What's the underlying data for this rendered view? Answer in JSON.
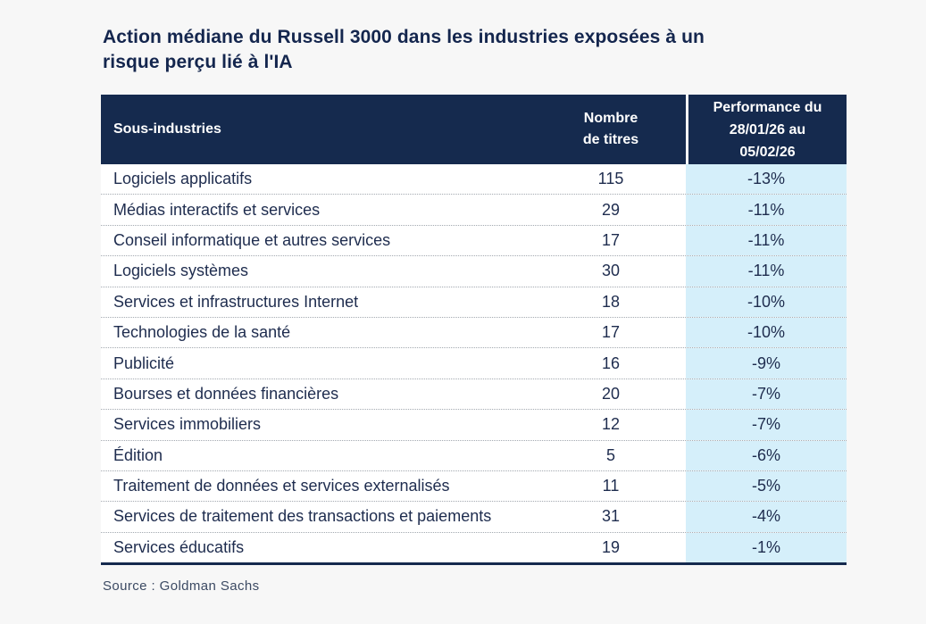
{
  "title": "Action médiane du Russell 3000 dans les industries exposées à un\nrisque perçu lié à l'IA",
  "table": {
    "headers": {
      "subindustries": "Sous-industries",
      "count": "Nombre\nde titres",
      "performance": "Performance du\n28/01/26 au\n05/02/26"
    },
    "rows": [
      {
        "name": "Logiciels applicatifs",
        "count": "115",
        "perf": "-13%"
      },
      {
        "name": "Médias interactifs et services",
        "count": "29",
        "perf": "-11%"
      },
      {
        "name": "Conseil informatique et autres services",
        "count": "17",
        "perf": "-11%"
      },
      {
        "name": "Logiciels systèmes",
        "count": "30",
        "perf": "-11%"
      },
      {
        "name": "Services et infrastructures Internet",
        "count": "18",
        "perf": "-10%"
      },
      {
        "name": "Technologies de la santé",
        "count": "17",
        "perf": "-10%"
      },
      {
        "name": "Publicité",
        "count": "16",
        "perf": "-9%"
      },
      {
        "name": "Bourses et données financières",
        "count": "20",
        "perf": "-7%"
      },
      {
        "name": "Services immobiliers",
        "count": "12",
        "perf": "-7%"
      },
      {
        "name": "Édition",
        "count": "5",
        "perf": "-6%"
      },
      {
        "name": "Traitement de données et services externalisés",
        "count": "11",
        "perf": "-5%"
      },
      {
        "name": "Services de traitement des transactions et paiements",
        "count": "31",
        "perf": "-4%"
      },
      {
        "name": "Services éducatifs",
        "count": "19",
        "perf": "-1%"
      }
    ]
  },
  "source": "Source : Goldman Sachs",
  "colors": {
    "page_bg": "#f7f7f7",
    "header_bg": "#152a4e",
    "header_text": "#ffffff",
    "body_text": "#1e2c4e",
    "title_text": "#14264e",
    "highlight_column_bg": "#d5effa",
    "row_separator": "#a3a9b0",
    "bottom_rule": "#152a4e"
  },
  "chart_data": {
    "type": "table",
    "title": "Action médiane du Russell 3000 dans les industries exposées à un risque perçu lié à l'IA",
    "columns": [
      "Sous-industries",
      "Nombre de titres",
      "Performance du 28/01/26 au 05/02/26"
    ],
    "rows": [
      [
        "Logiciels applicatifs",
        115,
        "-13%"
      ],
      [
        "Médias interactifs et services",
        29,
        "-11%"
      ],
      [
        "Conseil informatique et autres services",
        17,
        "-11%"
      ],
      [
        "Logiciels systèmes",
        30,
        "-11%"
      ],
      [
        "Services et infrastructures Internet",
        18,
        "-10%"
      ],
      [
        "Technologies de la santé",
        17,
        "-10%"
      ],
      [
        "Publicité",
        16,
        "-9%"
      ],
      [
        "Bourses et données financières",
        20,
        "-7%"
      ],
      [
        "Services immobiliers",
        12,
        "-7%"
      ],
      [
        "Édition",
        5,
        "-6%"
      ],
      [
        "Traitement de données et services externalisés",
        11,
        "-5%"
      ],
      [
        "Services de traitement des transactions et paiements",
        31,
        "-4%"
      ],
      [
        "Services éducatifs",
        19,
        "-1%"
      ]
    ],
    "source": "Source : Goldman Sachs",
    "layout_hints": {
      "highlighted_column": "Performance du 28/01/26 au 05/02/26",
      "row_separators": "dotted",
      "header_style": "dark-navy"
    }
  }
}
